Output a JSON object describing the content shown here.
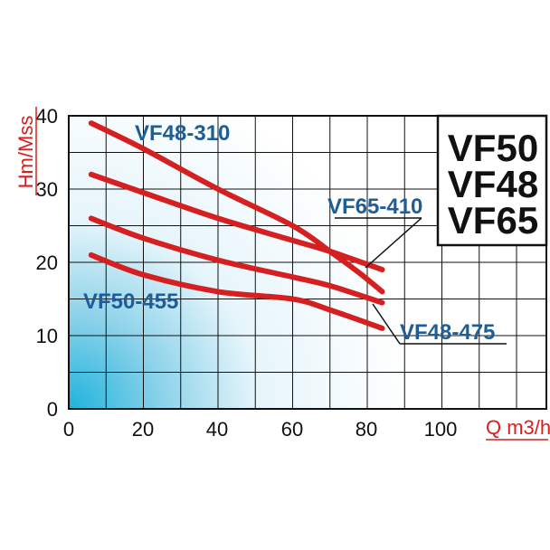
{
  "chart_data": {
    "type": "line",
    "title": "",
    "xlabel": "Q m3/h",
    "ylabel": "Hm/Mss",
    "xlim": [
      0,
      128
    ],
    "ylim": [
      0,
      40
    ],
    "x_ticks": [
      "0",
      "20",
      "40",
      "60",
      "80",
      "100"
    ],
    "y_ticks": [
      "0",
      "10",
      "20",
      "30",
      "40"
    ],
    "grid": true,
    "legend_box": [
      "VF50",
      "VF48",
      "VF65"
    ],
    "series": [
      {
        "name": "VF48-310",
        "x": [
          6,
          20,
          40,
          60,
          70,
          78,
          84
        ],
        "y": [
          39,
          35.5,
          30,
          25,
          21.5,
          18.5,
          16
        ]
      },
      {
        "name": "VF65-410",
        "x": [
          6,
          20,
          40,
          60,
          70,
          84
        ],
        "y": [
          32,
          29.5,
          26,
          23,
          21.5,
          19
        ]
      },
      {
        "name": "VF48-475",
        "x": [
          6,
          20,
          40,
          60,
          70,
          84
        ],
        "y": [
          26,
          23.3,
          20.3,
          18,
          16.8,
          14.5
        ]
      },
      {
        "name": "VF50-455",
        "x": [
          6,
          20,
          40,
          60,
          70,
          84
        ],
        "y": [
          21,
          18.3,
          16,
          15,
          13.5,
          11
        ]
      }
    ],
    "colors": {
      "curve": "#d42020",
      "label": "#1f5d96",
      "axis_text": "#d42020"
    }
  }
}
